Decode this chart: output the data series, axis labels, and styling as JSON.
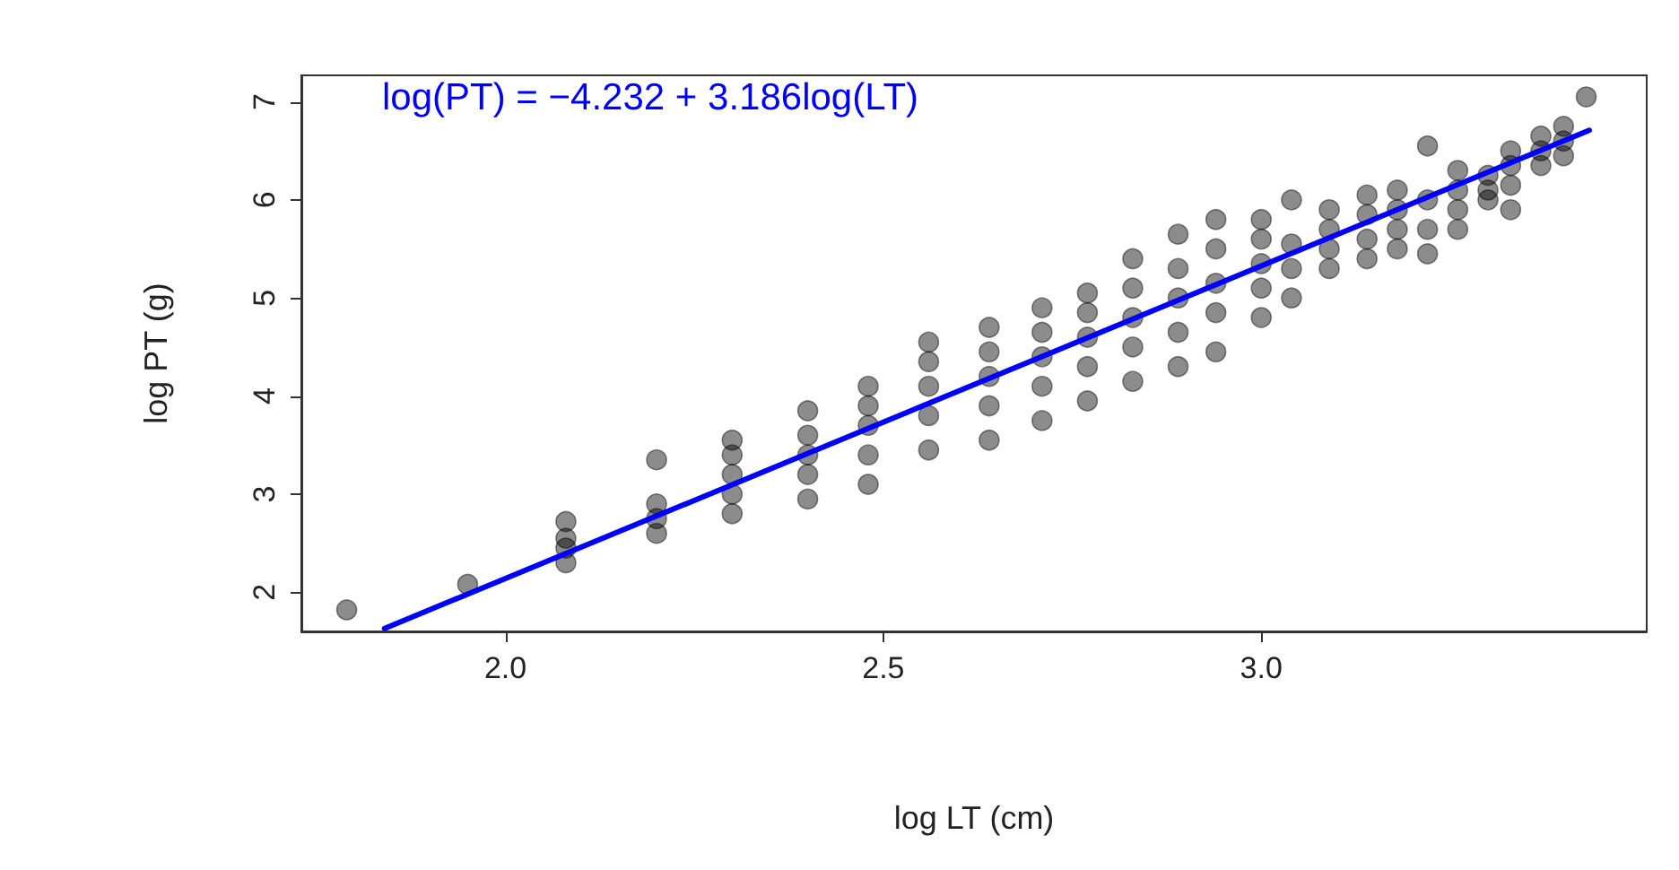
{
  "chart_data": {
    "type": "scatter",
    "xlabel": "log LT (cm)",
    "ylabel": "log PT (g)",
    "annotations": [
      "log(PT) = −4.232 + 3.186log(LT)"
    ],
    "xlim": [
      1.73,
      3.51
    ],
    "ylim": [
      1.6,
      7.27
    ],
    "xticks": [
      {
        "value": 2,
        "label": "2.0"
      },
      {
        "value": 2.5,
        "label": "2.5"
      },
      {
        "value": 3,
        "label": "3.0"
      }
    ],
    "yticks": [
      2,
      3,
      4,
      5,
      6,
      7
    ],
    "grid": false,
    "marker": "circle",
    "series": [
      {
        "color": "#000000",
        "x": [
          1.79,
          1.95,
          2.08,
          2.08,
          2.08,
          2.08,
          2.2,
          2.2,
          2.2,
          2.2,
          2.3,
          2.3,
          2.3,
          2.3,
          2.3,
          2.4,
          2.4,
          2.4,
          2.4,
          2.4,
          2.48,
          2.48,
          2.48,
          2.48,
          2.48,
          2.56,
          2.56,
          2.56,
          2.56,
          2.56,
          2.64,
          2.64,
          2.64,
          2.64,
          2.64,
          2.71,
          2.71,
          2.71,
          2.71,
          2.71,
          2.77,
          2.77,
          2.77,
          2.77,
          2.77,
          2.83,
          2.83,
          2.83,
          2.83,
          2.83,
          2.89,
          2.89,
          2.89,
          2.89,
          2.89,
          2.94,
          2.94,
          2.94,
          2.94,
          2.94,
          3.0,
          3.0,
          3.0,
          3.0,
          3.0,
          3.04,
          3.04,
          3.04,
          3.04,
          3.09,
          3.09,
          3.09,
          3.09,
          3.14,
          3.14,
          3.14,
          3.14,
          3.18,
          3.18,
          3.18,
          3.18,
          3.22,
          3.22,
          3.22,
          3.22,
          3.26,
          3.26,
          3.26,
          3.26,
          3.3,
          3.3,
          3.3,
          3.33,
          3.33,
          3.33,
          3.33,
          3.37,
          3.37,
          3.37,
          3.4,
          3.4,
          3.4,
          3.43
        ],
        "values": [
          1.82,
          2.08,
          2.3,
          2.45,
          2.55,
          2.72,
          2.6,
          2.75,
          2.9,
          3.35,
          2.8,
          3.0,
          3.2,
          3.4,
          3.55,
          2.95,
          3.2,
          3.4,
          3.6,
          3.85,
          3.1,
          3.4,
          3.7,
          3.9,
          4.1,
          3.45,
          3.8,
          4.1,
          4.35,
          4.55,
          3.55,
          3.9,
          4.2,
          4.45,
          4.7,
          3.75,
          4.1,
          4.4,
          4.65,
          4.9,
          3.95,
          4.3,
          4.6,
          4.85,
          5.05,
          4.15,
          4.5,
          4.8,
          5.1,
          5.4,
          4.3,
          4.65,
          5.0,
          5.3,
          5.65,
          4.45,
          4.85,
          5.15,
          5.5,
          5.8,
          4.8,
          5.1,
          5.35,
          5.6,
          5.8,
          5.0,
          5.3,
          5.55,
          6.0,
          5.3,
          5.5,
          5.7,
          5.9,
          5.4,
          5.6,
          5.85,
          6.05,
          5.5,
          5.7,
          5.9,
          6.1,
          5.45,
          5.7,
          6.0,
          6.55,
          5.7,
          5.9,
          6.1,
          6.3,
          6.0,
          6.1,
          6.25,
          5.9,
          6.15,
          6.35,
          6.5,
          6.35,
          6.5,
          6.65,
          6.45,
          6.6,
          6.75,
          7.05
        ]
      },
      {
        "type": "line",
        "color": "#0000ff",
        "marker": "none",
        "line_style": "solid",
        "x": [
          1.84,
          3.434
        ],
        "values": [
          1.63,
          6.71
        ]
      }
    ]
  }
}
